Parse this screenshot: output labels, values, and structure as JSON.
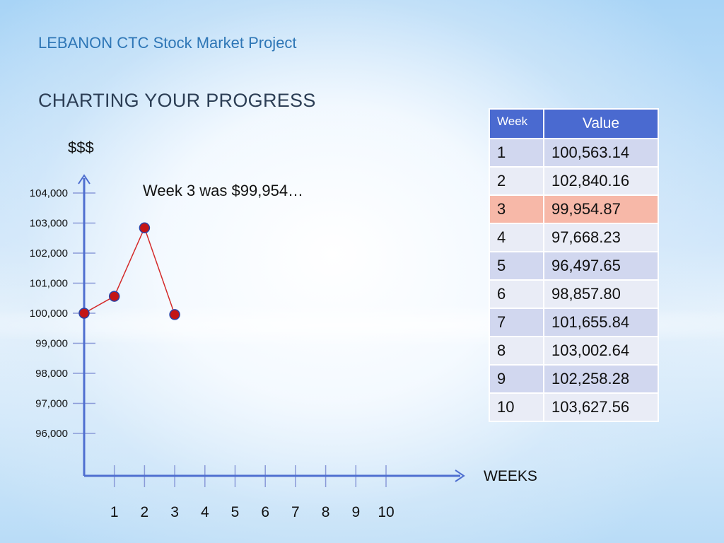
{
  "header": {
    "subtitle": "LEBANON CTC Stock Market Project",
    "title": "CHARTING YOUR PROGRESS"
  },
  "annotation": "Week 3 was $99,954…",
  "colors": {
    "axis": "#4f6fd0",
    "line": "#d42a2a",
    "marker_fill": "#c41616",
    "marker_stroke": "#2a44a8",
    "table_header": "#4a6ad0",
    "highlight_row": "#f7b8a8"
  },
  "chart_data": {
    "type": "line",
    "xlabel": "WEEKS",
    "ylabel": "$$$",
    "x_ticks": [
      "1",
      "2",
      "3",
      "4",
      "5",
      "6",
      "7",
      "8",
      "9",
      "10"
    ],
    "y_ticks": [
      "104,000",
      "103,000",
      "102,000",
      "101,000",
      "100,000",
      "99,000",
      "98,000",
      "97,000",
      "96,000"
    ],
    "y_tick_values": [
      104000,
      103000,
      102000,
      101000,
      100000,
      99000,
      98000,
      97000,
      96000
    ],
    "ylim": [
      95000,
      104500
    ],
    "xlim": [
      0,
      10
    ],
    "series": [
      {
        "x": [
          0,
          1,
          2,
          3
        ],
        "values": [
          100000,
          100563.14,
          102840.16,
          99954.87
        ]
      }
    ]
  },
  "table": {
    "headers": [
      "Week",
      "Value"
    ],
    "rows": [
      [
        "1",
        "100,563.14"
      ],
      [
        "2",
        "102,840.16"
      ],
      [
        "3",
        "99,954.87"
      ],
      [
        "4",
        "97,668.23"
      ],
      [
        "5",
        "96,497.65"
      ],
      [
        "6",
        "98,857.80"
      ],
      [
        "7",
        "101,655.84"
      ],
      [
        "8",
        "103,002.64"
      ],
      [
        "9",
        "102,258.28"
      ],
      [
        "10",
        "103,627.56"
      ]
    ],
    "highlight_row": 3
  }
}
